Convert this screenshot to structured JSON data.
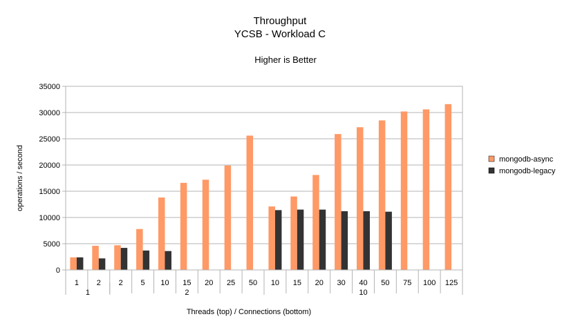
{
  "chart_data": {
    "type": "bar",
    "title": "Throughput",
    "subtitle": "YCSB - Workload C",
    "annotation": "Higher is Better",
    "xlabel": "Threads (top) / Connections (bottom)",
    "ylabel": "operations / second",
    "ylim": [
      0,
      35000
    ],
    "yticks": [
      0,
      5000,
      10000,
      15000,
      20000,
      25000,
      30000,
      35000
    ],
    "grid": true,
    "legend_position": "right",
    "categories": [
      "1",
      "2",
      "2",
      "5",
      "10",
      "15",
      "20",
      "25",
      "50",
      "10",
      "15",
      "20",
      "30",
      "40",
      "50",
      "75",
      "100",
      "125"
    ],
    "groups": [
      {
        "label": "1",
        "count": 2
      },
      {
        "label": "2",
        "count": 7
      },
      {
        "label": "10",
        "count": 9
      }
    ],
    "series": [
      {
        "name": "mongodb-async",
        "color": "#ff9966",
        "values": [
          2400,
          4600,
          4700,
          7800,
          13800,
          16600,
          17200,
          19900,
          25600,
          12100,
          14000,
          18100,
          25900,
          27200,
          28500,
          30200,
          30600,
          31600
        ]
      },
      {
        "name": "mongodb-legacy",
        "color": "#333333",
        "values": [
          2400,
          2200,
          4200,
          3700,
          3600,
          null,
          null,
          null,
          null,
          11400,
          11500,
          11500,
          11200,
          11200,
          11100,
          null,
          null,
          null
        ]
      }
    ]
  }
}
